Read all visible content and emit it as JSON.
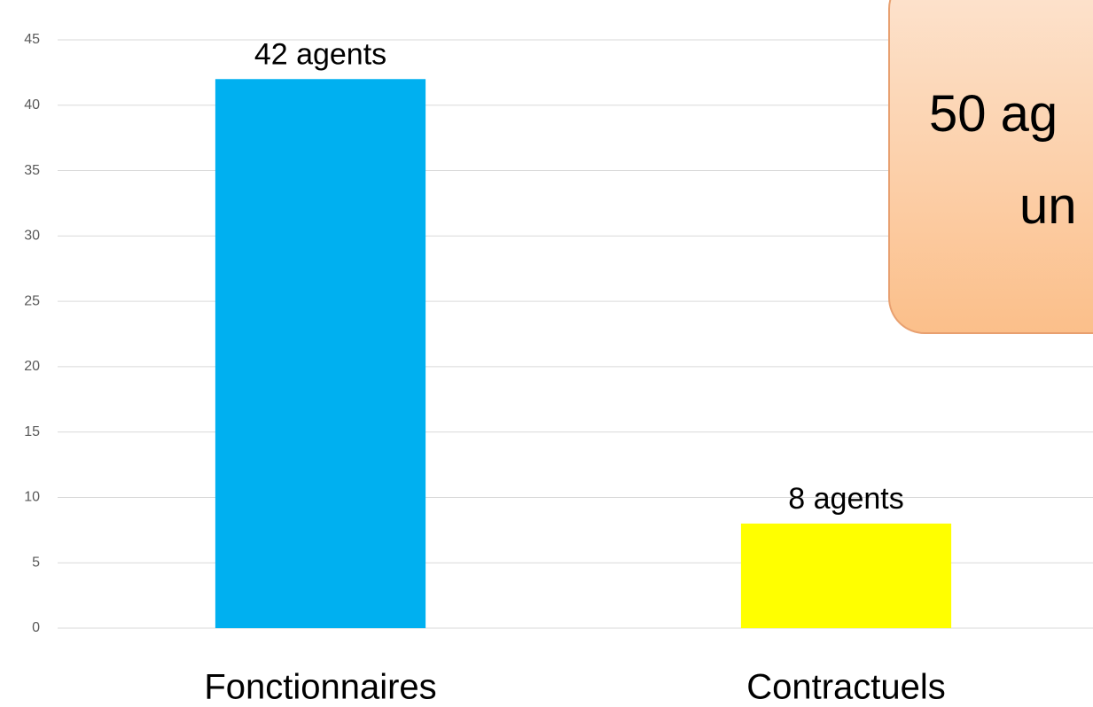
{
  "chart_data": {
    "type": "bar",
    "categories": [
      "Fonctionnaires",
      "Contractuels"
    ],
    "values": [
      42,
      8
    ],
    "value_labels": [
      "42 agents",
      "8 agents"
    ],
    "colors": [
      "#00b0f0",
      "#ffff00"
    ],
    "ylim": [
      0,
      45
    ],
    "yticks": [
      0,
      5,
      10,
      15,
      20,
      25,
      30,
      35,
      40,
      45
    ],
    "grid": true,
    "annotation": [
      "50 ag",
      "un"
    ]
  }
}
